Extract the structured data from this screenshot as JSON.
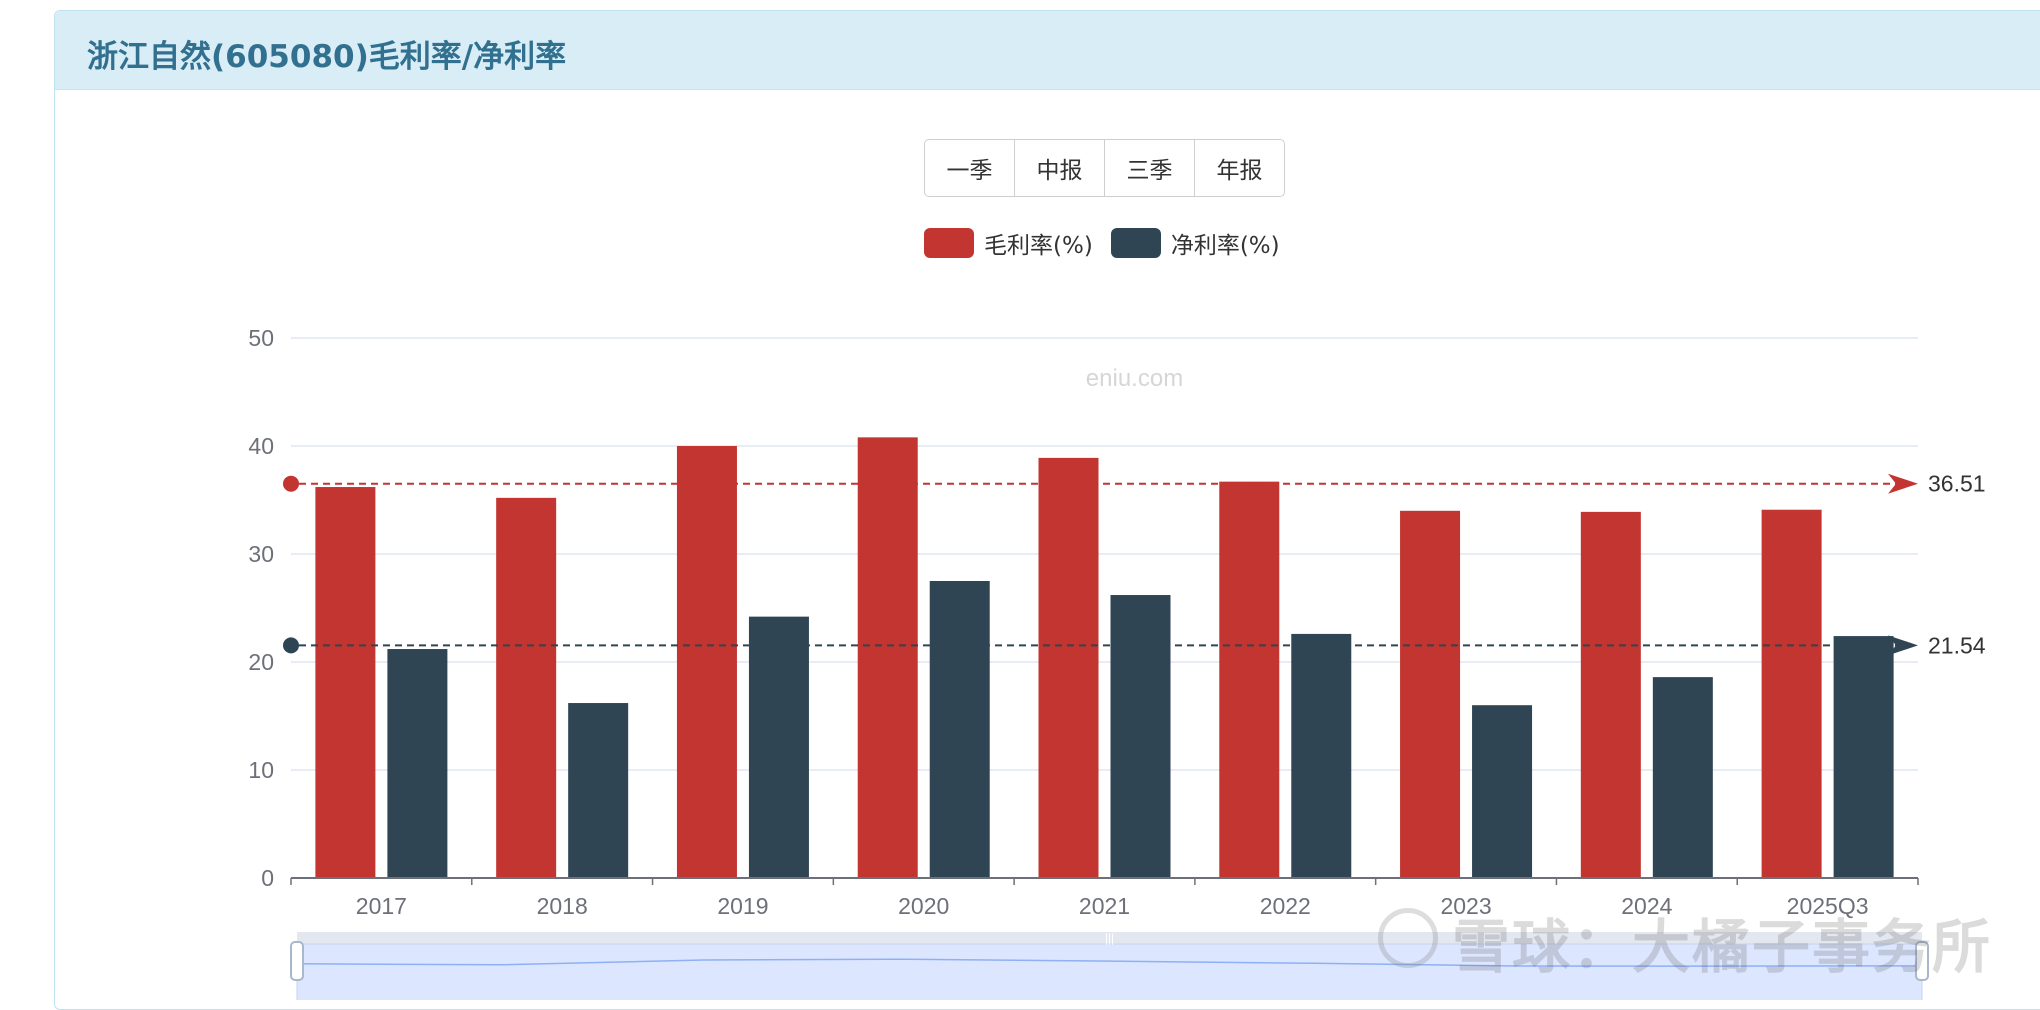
{
  "header": {
    "title": "浙江自然(605080)毛利率/净利率"
  },
  "period_buttons": [
    "一季",
    "中报",
    "三季",
    "年报"
  ],
  "legend": [
    {
      "label": "毛利率(%)",
      "color": "#c23531"
    },
    {
      "label": "净利率(%)",
      "color": "#2f4554"
    }
  ],
  "watermark": {
    "chart_site": "eniu.com",
    "brand": "雪球：大橘子事务所"
  },
  "chart_data": {
    "type": "bar",
    "categories": [
      "2017",
      "2018",
      "2019",
      "2020",
      "2021",
      "2022",
      "2023",
      "2024",
      "2025Q3"
    ],
    "series": [
      {
        "name": "毛利率(%)",
        "color": "#c23531",
        "values": [
          36.2,
          35.2,
          40.0,
          40.8,
          38.9,
          36.7,
          34.0,
          33.9,
          34.1
        ]
      },
      {
        "name": "净利率(%)",
        "color": "#2f4554",
        "values": [
          21.2,
          16.2,
          24.2,
          27.5,
          26.2,
          22.6,
          16.0,
          18.6,
          22.4
        ]
      }
    ],
    "average_lines": [
      {
        "series": "毛利率(%)",
        "value": 36.51,
        "label": "36.51"
      },
      {
        "series": "净利率(%)",
        "value": 21.54,
        "label": "21.54"
      }
    ],
    "ylim": [
      0,
      50
    ],
    "yticks": [
      "0",
      "10",
      "20",
      "30",
      "40",
      "50"
    ],
    "grid": true,
    "data_zoom_slider": true
  }
}
